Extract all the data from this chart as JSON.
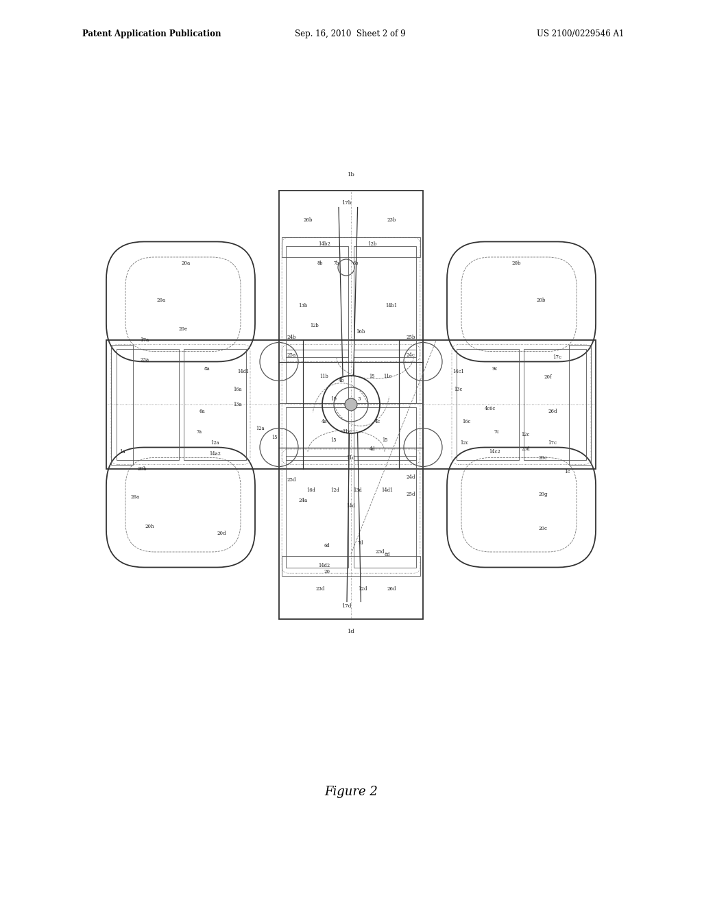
{
  "bg_color": "#ffffff",
  "title": "Figure 2",
  "header_left": "Patent Application Publication",
  "header_center": "Sep. 16, 2010  Sheet 2 of 9",
  "header_right": "US 2100/0229546 A1",
  "line_color": "#555555"
}
